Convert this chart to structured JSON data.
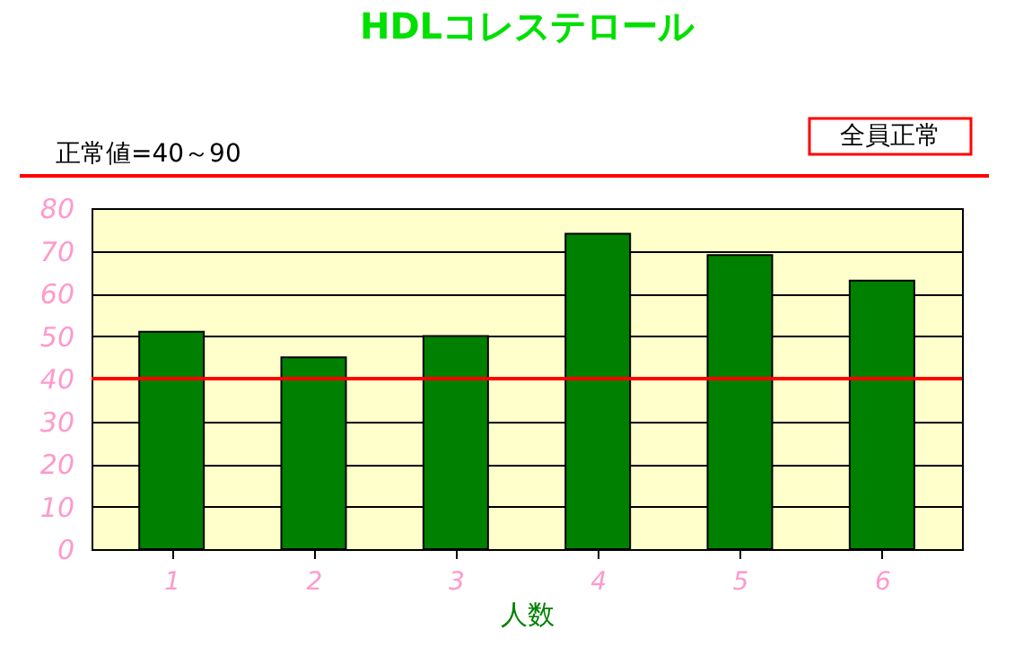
{
  "chart_data": {
    "type": "bar",
    "title": "HDLコレステロール",
    "xlabel": "人数",
    "categories": [
      "1",
      "2",
      "3",
      "4",
      "5",
      "6"
    ],
    "values": [
      51,
      45,
      50,
      74,
      69,
      63
    ],
    "color": "#008000",
    "ylim": [
      0,
      80
    ],
    "yticks": [
      0,
      10,
      20,
      30,
      40,
      50,
      60,
      70,
      80
    ],
    "grid": "y",
    "ref_lines": [
      {
        "axis": "y",
        "value": 40,
        "color": "#ff0000"
      }
    ],
    "annotations": [
      "正常値=40～90",
      "全員正常"
    ]
  }
}
